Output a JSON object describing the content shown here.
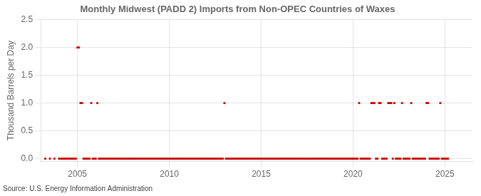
{
  "chart_data": {
    "type": "scatter",
    "title": "Monthly Midwest (PADD 2) Imports from Non-OPEC Countries of Waxes",
    "ylabel": "Thousand Barrels per Day",
    "annotations": [
      "Source: U.S. Energy Information Administration"
    ],
    "color": "#cc0000",
    "marker": "square",
    "grid": true,
    "legend": false,
    "xlim": [
      2003.0,
      2026.5
    ],
    "ylim": [
      -0.05,
      2.5
    ],
    "xticks": [
      2005,
      2010,
      2015,
      2020,
      2025
    ],
    "yticks": [
      {
        "value": 0.0,
        "label": "0.0"
      },
      0.5,
      {
        "value": 1.0,
        "label": "1.0"
      },
      1.5,
      {
        "value": 2.0,
        "label": "2.0"
      },
      2.5
    ],
    "x": [
      2003.25,
      2003.5,
      2003.75,
      2004.0,
      2004.083,
      2004.167,
      2004.25,
      2004.333,
      2004.417,
      2004.5,
      2004.583,
      2004.667,
      2004.75,
      2004.833,
      2004.917,
      2005.0,
      2005.083,
      2005.167,
      2005.25,
      2005.333,
      2005.417,
      2005.5,
      2005.583,
      2005.667,
      2005.75,
      2005.833,
      2005.917,
      2006.0,
      2006.083,
      2006.167,
      2006.25,
      2006.333,
      2006.417,
      2006.5,
      2006.583,
      2006.667,
      2006.75,
      2006.833,
      2006.917,
      2007.0,
      2007.083,
      2007.167,
      2007.25,
      2007.333,
      2007.417,
      2007.5,
      2007.583,
      2007.667,
      2007.75,
      2007.833,
      2007.917,
      2008.0,
      2008.083,
      2008.167,
      2008.25,
      2008.333,
      2008.417,
      2008.5,
      2008.583,
      2008.667,
      2008.75,
      2008.833,
      2008.917,
      2009.0,
      2009.083,
      2009.167,
      2009.25,
      2009.333,
      2009.417,
      2009.5,
      2009.583,
      2009.667,
      2009.75,
      2009.833,
      2009.917,
      2010.0,
      2010.083,
      2010.167,
      2010.25,
      2010.333,
      2010.417,
      2010.5,
      2010.583,
      2010.667,
      2010.75,
      2010.833,
      2010.917,
      2011.0,
      2011.083,
      2011.167,
      2011.25,
      2011.333,
      2011.417,
      2011.5,
      2011.583,
      2011.667,
      2011.75,
      2011.833,
      2011.917,
      2012.0,
      2012.083,
      2012.167,
      2012.25,
      2012.333,
      2012.417,
      2012.5,
      2012.583,
      2012.667,
      2012.75,
      2012.833,
      2012.917,
      2013.0,
      2013.083,
      2013.167,
      2013.25,
      2013.333,
      2013.417,
      2013.5,
      2013.583,
      2013.667,
      2013.75,
      2013.833,
      2013.917,
      2014.0,
      2014.083,
      2014.167,
      2014.25,
      2014.333,
      2014.417,
      2014.5,
      2014.583,
      2014.667,
      2014.75,
      2014.833,
      2014.917,
      2015.0,
      2015.083,
      2015.167,
      2015.25,
      2015.333,
      2015.417,
      2015.5,
      2015.583,
      2015.667,
      2015.75,
      2015.833,
      2015.917,
      2016.0,
      2016.083,
      2016.167,
      2016.25,
      2016.333,
      2016.417,
      2016.5,
      2016.583,
      2016.667,
      2016.75,
      2016.833,
      2016.917,
      2017.0,
      2017.083,
      2017.167,
      2017.25,
      2017.333,
      2017.417,
      2017.5,
      2017.583,
      2017.667,
      2017.75,
      2017.833,
      2017.917,
      2018.0,
      2018.083,
      2018.167,
      2018.25,
      2018.333,
      2018.417,
      2018.5,
      2018.583,
      2018.667,
      2018.75,
      2018.833,
      2018.917,
      2019.0,
      2019.083,
      2019.167,
      2019.25,
      2019.333,
      2019.417,
      2019.5,
      2019.583,
      2019.667,
      2019.75,
      2019.833,
      2019.917,
      2020.0,
      2020.083,
      2020.167,
      2020.25,
      2020.333,
      2020.417,
      2020.5,
      2020.583,
      2020.667,
      2020.75,
      2020.833,
      2020.917,
      2021.0,
      2021.083,
      2021.167,
      2021.25,
      2021.333,
      2021.417,
      2021.5,
      2021.583,
      2021.667,
      2021.75,
      2021.833,
      2021.917,
      2022.0,
      2022.083,
      2022.167,
      2022.25,
      2022.333,
      2022.417,
      2022.5,
      2022.583,
      2022.667,
      2022.75,
      2022.833,
      2022.917,
      2023.0,
      2023.083,
      2023.167,
      2023.25,
      2023.333,
      2023.417,
      2023.5,
      2023.583,
      2023.667,
      2023.75,
      2023.833,
      2023.917,
      2024.0,
      2024.083,
      2024.167,
      2024.25,
      2024.333,
      2024.417,
      2024.5,
      2024.583,
      2024.667,
      2024.75,
      2024.833,
      2024.917,
      2025.0,
      2025.083,
      2025.167
    ],
    "values": [
      0,
      0,
      0,
      0,
      0,
      0,
      0,
      0,
      0,
      0,
      0,
      0,
      0,
      0,
      0,
      2,
      2,
      1,
      1,
      0,
      0,
      0,
      0,
      0,
      1,
      0,
      0,
      0,
      1,
      0,
      0,
      0,
      0,
      0,
      0,
      0,
      0,
      0,
      0,
      0,
      0,
      0,
      0,
      0,
      0,
      0,
      0,
      0,
      0,
      0,
      0,
      0,
      0,
      0,
      0,
      0,
      0,
      0,
      0,
      0,
      0,
      0,
      0,
      0,
      0,
      0,
      0,
      0,
      0,
      0,
      0,
      0,
      0,
      0,
      0,
      0,
      0,
      0,
      0,
      0,
      0,
      0,
      0,
      0,
      0,
      0,
      0,
      0,
      0,
      0,
      0,
      0,
      0,
      0,
      0,
      0,
      0,
      0,
      0,
      0,
      0,
      0,
      0,
      0,
      0,
      0,
      0,
      0,
      0,
      0,
      0,
      1,
      0,
      0,
      0,
      0,
      0,
      0,
      0,
      0,
      0,
      0,
      0,
      0,
      0,
      0,
      0,
      0,
      0,
      0,
      0,
      0,
      0,
      0,
      0,
      0,
      0,
      0,
      0,
      0,
      0,
      0,
      0,
      0,
      0,
      0,
      0,
      0,
      0,
      0,
      0,
      0,
      0,
      0,
      0,
      0,
      0,
      0,
      0,
      0,
      0,
      0,
      0,
      0,
      0,
      0,
      0,
      0,
      0,
      0,
      0,
      0,
      0,
      0,
      0,
      0,
      0,
      0,
      0,
      0,
      0,
      0,
      0,
      0,
      0,
      0,
      0,
      0,
      0,
      0,
      0,
      0,
      0,
      0,
      0,
      0,
      0,
      0,
      0,
      1,
      0,
      0,
      0,
      0,
      0,
      0,
      0,
      1,
      1,
      1,
      0,
      0,
      1,
      1,
      0,
      0,
      0,
      0,
      1,
      1,
      1,
      0,
      1,
      0,
      0,
      0,
      0,
      1,
      0,
      0,
      0,
      0,
      0,
      1,
      0,
      0,
      0,
      0,
      0,
      0,
      0,
      0,
      0,
      1,
      1,
      0,
      0,
      0,
      0,
      0,
      0,
      0,
      1,
      0,
      0,
      0,
      0,
      0
    ]
  }
}
